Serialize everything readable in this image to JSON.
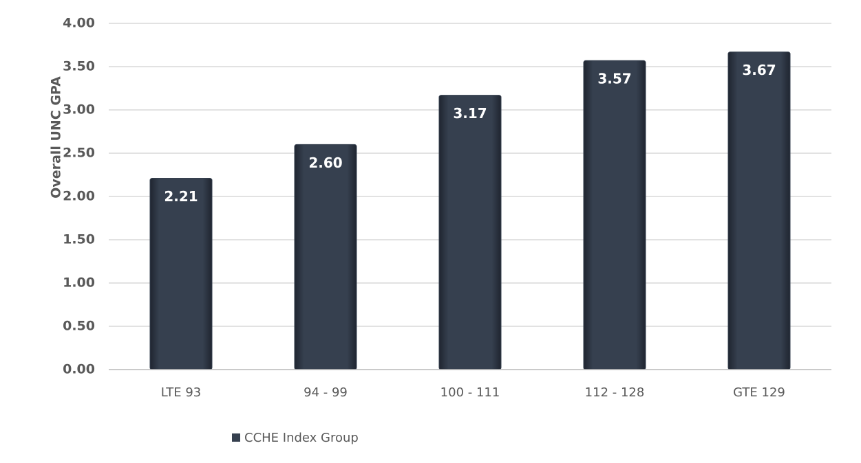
{
  "chart_data": {
    "type": "bar",
    "y_label": "Overall UNC GPA",
    "categories": [
      "LTE 93",
      "94 - 99",
      "100 - 111",
      "112 - 128",
      "GTE 129"
    ],
    "values": [
      2.21,
      2.6,
      3.17,
      3.57,
      3.67
    ],
    "value_labels": [
      "2.21",
      "2.60",
      "3.17",
      "3.57",
      "3.67"
    ],
    "color": "#36404f",
    "legend": "CCHE Index Group",
    "legend_position": "bottom",
    "ylim": [
      0,
      4
    ],
    "yticks": [
      {
        "value": 0,
        "label": "0.00"
      },
      {
        "value": 0.5,
        "label": "0.50"
      },
      {
        "value": 1,
        "label": "1.00"
      },
      {
        "value": 1.5,
        "label": "1.50"
      },
      {
        "value": 2,
        "label": "2.00"
      },
      {
        "value": 2.5,
        "label": "2.50"
      },
      {
        "value": 3,
        "label": "3.00"
      },
      {
        "value": 3.5,
        "label": "3.50"
      },
      {
        "value": 4,
        "label": "4.00"
      }
    ],
    "grid": true
  }
}
